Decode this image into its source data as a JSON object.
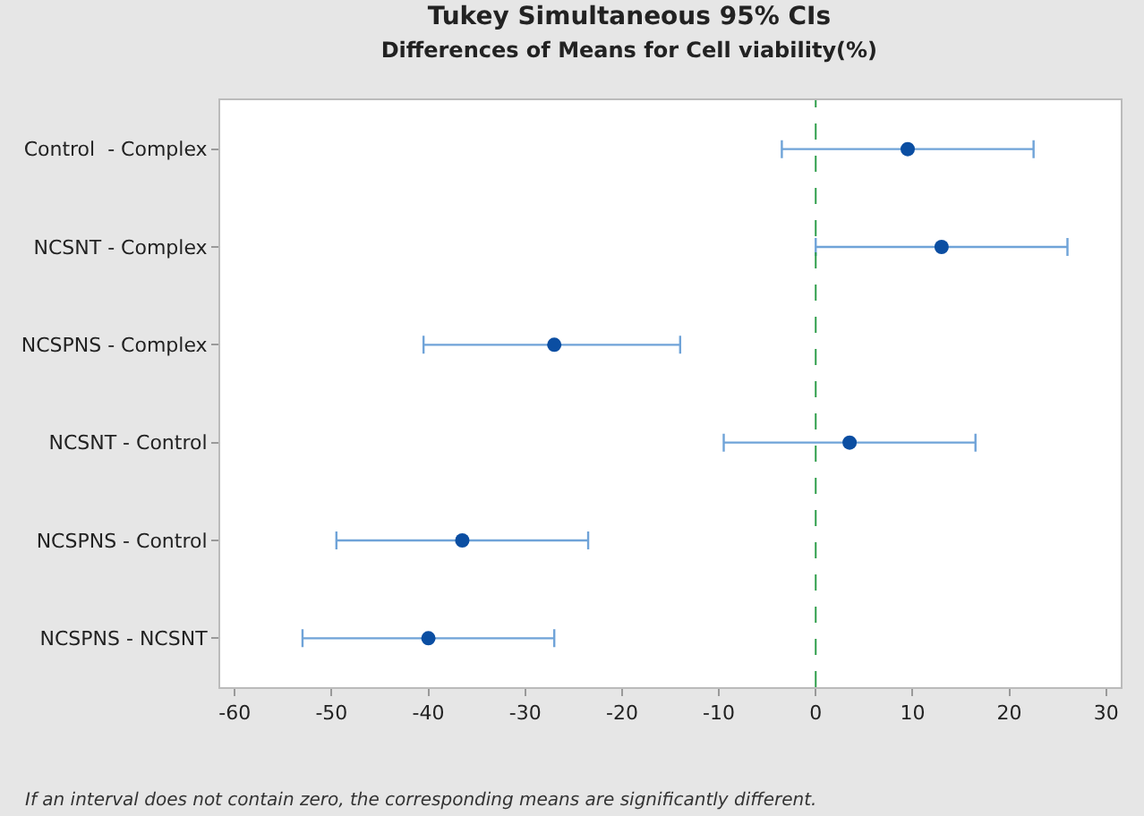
{
  "chart_data": {
    "type": "scatter",
    "orientation": "horizontal",
    "title": "Tukey Simultaneous 95% CIs",
    "subtitle": "Differences of Means for Cell viability(%)",
    "categories": [
      "Control  - Complex",
      "NCSNT - Complex",
      "NCSPNS - Complex",
      "NCSNT - Control",
      "NCSPNS - Control",
      "NCSPNS - NCSNT"
    ],
    "values": [
      9.5,
      13,
      -27,
      3.5,
      -36.5,
      -40
    ],
    "errors": [
      [
        -3.5,
        22.5
      ],
      [
        0,
        26
      ],
      [
        -40.5,
        -14
      ],
      [
        -9.5,
        16.5
      ],
      [
        -49.5,
        -23.5
      ],
      [
        -53,
        -27
      ]
    ],
    "color": "#0b4ea2",
    "xlim": [
      -61.5,
      31.5
    ],
    "xticks": [
      -60,
      -50,
      -40,
      -30,
      -20,
      -10,
      0,
      10,
      20,
      30
    ],
    "ref_lines": [
      {
        "axis": "x",
        "value": 0,
        "color": "#2e9e4a",
        "line_style": "dashed"
      }
    ],
    "annotations": [
      "If an interval does not contain zero, the corresponding means are significantly different."
    ],
    "marker": "circle"
  }
}
